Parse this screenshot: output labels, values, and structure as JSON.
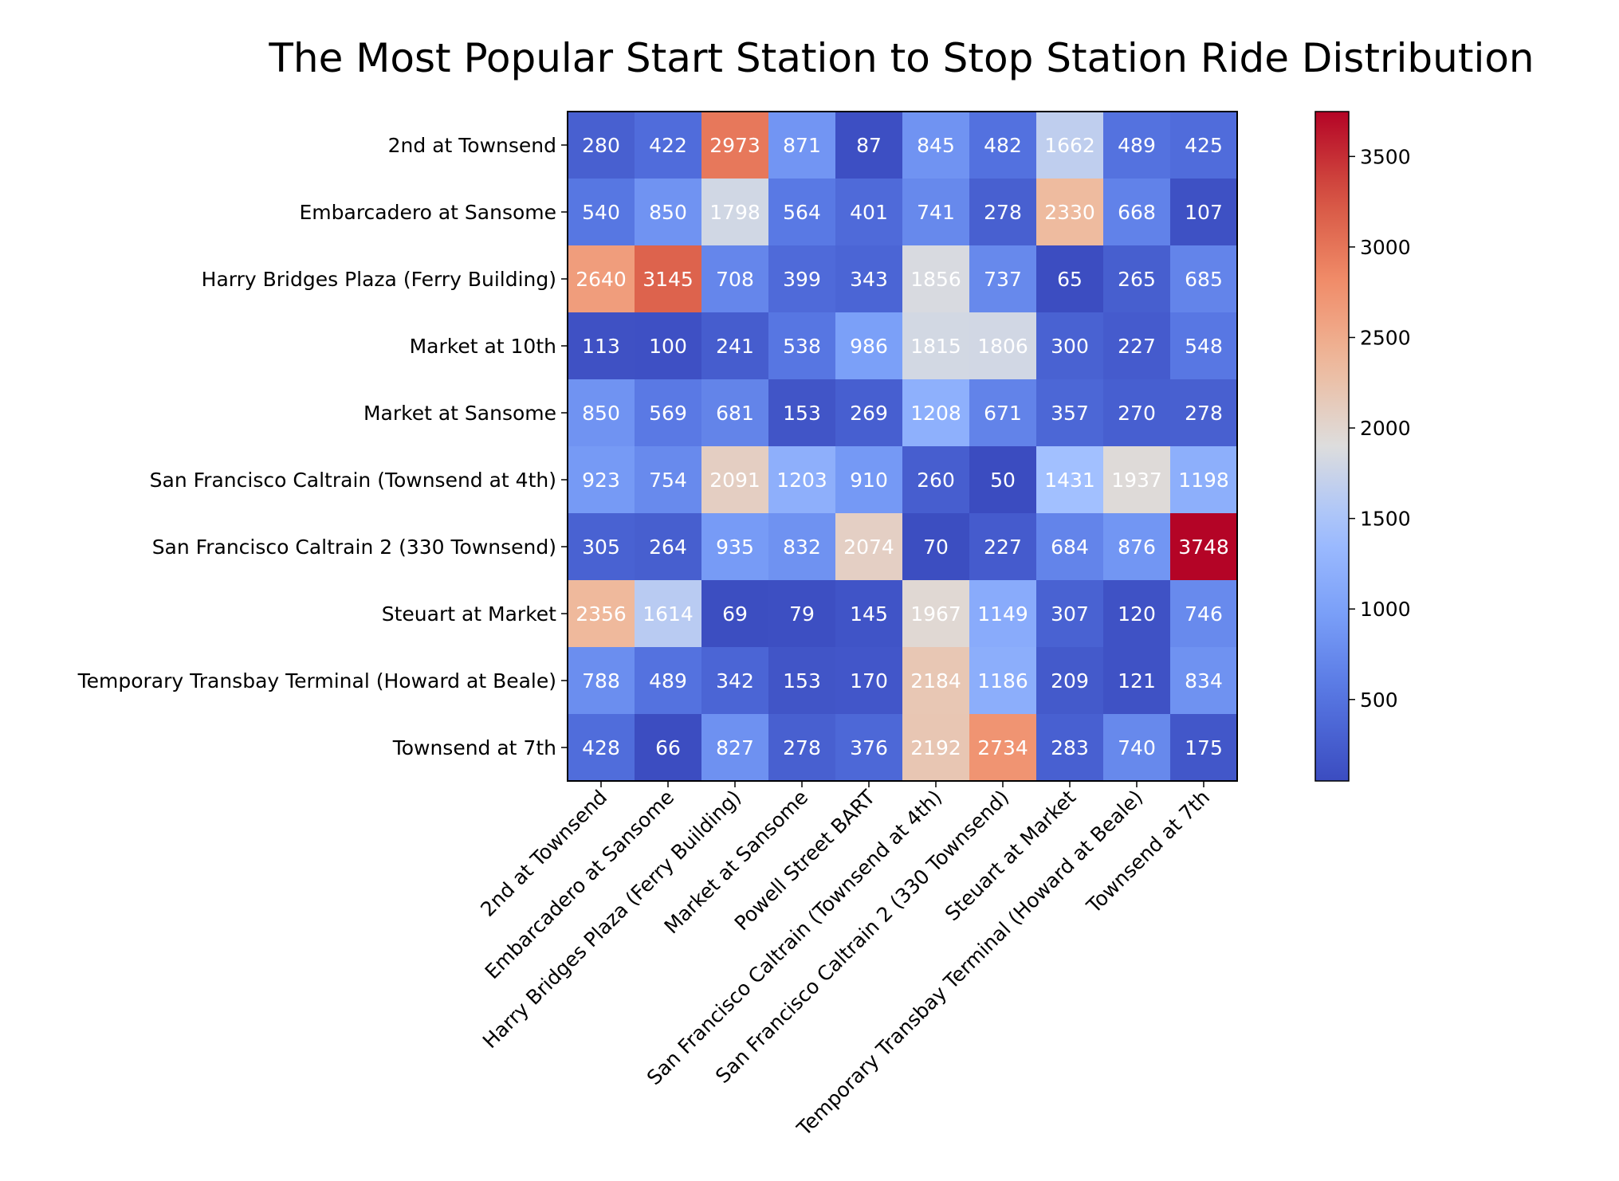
{
  "chart_data": {
    "type": "heatmap",
    "title": "The Most Popular Start Station to Stop Station Ride Distribution",
    "xlabel": "",
    "ylabel": "",
    "rows": [
      "2nd at Townsend",
      "Embarcadero at Sansome",
      "Harry Bridges Plaza (Ferry Building)",
      "Market at 10th",
      "Market at Sansome",
      "San Francisco Caltrain (Townsend at 4th)",
      "San Francisco Caltrain 2 (330 Townsend)",
      "Steuart at Market",
      "Temporary Transbay Terminal (Howard at Beale)",
      "Townsend at 7th"
    ],
    "columns": [
      "2nd at Townsend",
      "Embarcadero at Sansome",
      "Harry Bridges Plaza (Ferry Building)",
      "Market at Sansome",
      "Powell Street BART",
      "San Francisco Caltrain (Townsend at 4th)",
      "San Francisco Caltrain 2 (330 Townsend)",
      "Steuart at Market",
      "Temporary Transbay Terminal (Howard at Beale)",
      "Townsend at 7th"
    ],
    "values": [
      [
        280,
        422,
        2973,
        871,
        87,
        845,
        482,
        1662,
        489,
        425
      ],
      [
        540,
        850,
        1798,
        564,
        401,
        741,
        278,
        2330,
        668,
        107
      ],
      [
        2640,
        3145,
        708,
        399,
        343,
        1856,
        737,
        65,
        265,
        685
      ],
      [
        113,
        100,
        241,
        538,
        986,
        1815,
        1806,
        300,
        227,
        548
      ],
      [
        850,
        569,
        681,
        153,
        269,
        1208,
        671,
        357,
        270,
        278
      ],
      [
        923,
        754,
        2091,
        1203,
        910,
        260,
        50,
        1431,
        1937,
        1198
      ],
      [
        305,
        264,
        935,
        832,
        2074,
        70,
        227,
        684,
        876,
        3748
      ],
      [
        2356,
        1614,
        69,
        79,
        145,
        1967,
        1149,
        307,
        120,
        746
      ],
      [
        788,
        489,
        342,
        153,
        170,
        2184,
        1186,
        209,
        121,
        834
      ],
      [
        428,
        66,
        827,
        278,
        376,
        2192,
        2734,
        283,
        740,
        175
      ]
    ],
    "colormap": "coolwarm",
    "vmin": 50,
    "vmax": 3748,
    "colorbar_ticks": [
      500,
      1000,
      1500,
      2000,
      2500,
      3000,
      3500
    ],
    "colorbar_tick_labels": [
      "500",
      "1000",
      "1500",
      "2000",
      "2500",
      "3000",
      "3500"
    ],
    "colors": {
      "cold": "#3b4cc0",
      "neutral": "#dddddd",
      "hot": "#b40426",
      "cell_text": "#ffffff"
    }
  }
}
